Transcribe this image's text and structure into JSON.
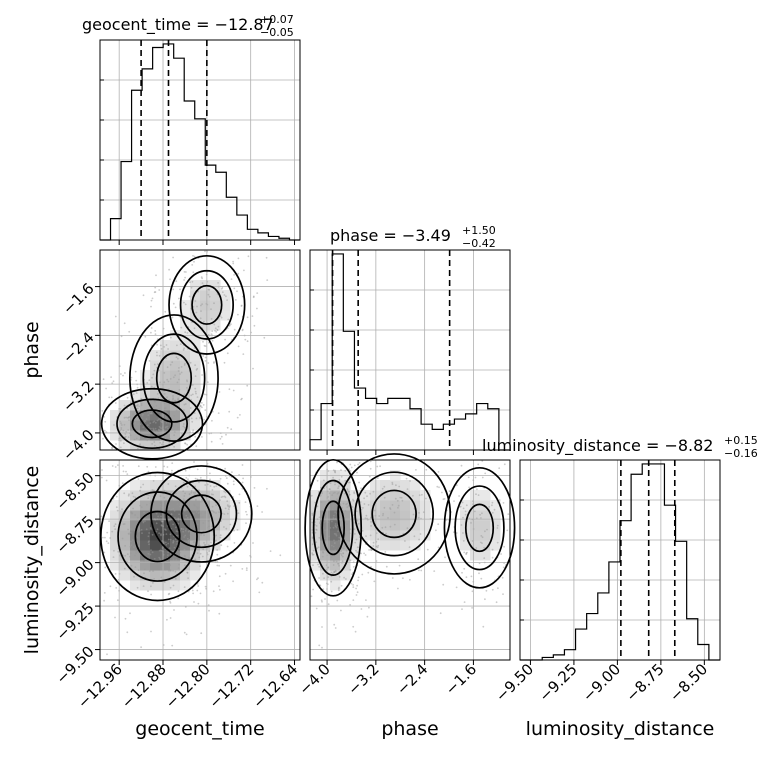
{
  "chart_data": {
    "type": "corner",
    "parameters": [
      "geocent_time",
      "phase",
      "luminosity_distance"
    ],
    "titles": [
      {
        "param": "geocent_time",
        "main": "geocent_time = −12.87",
        "plus": "+0.07",
        "minus": "−0.05"
      },
      {
        "param": "phase",
        "main": "phase = −3.49",
        "plus": "+1.50",
        "minus": "−0.42"
      },
      {
        "param": "luminosity_distance",
        "main": "luminosity_distance = −8.82",
        "plus": "+0.15",
        "minus": "−0.16"
      }
    ],
    "ranges": {
      "geocent_time": [
        -12.995,
        -12.63
      ],
      "phase": [
        -4.28,
        -1.0
      ],
      "luminosity_distance": [
        -9.56,
        -8.41
      ]
    },
    "quantiles": {
      "geocent_time": [
        -12.92,
        -12.87,
        -12.8
      ],
      "phase": [
        -3.91,
        -3.49,
        -1.99
      ],
      "luminosity_distance": [
        -8.98,
        -8.82,
        -8.67
      ]
    },
    "ticks": {
      "geocent_time": {
        "values": [
          -12.96,
          -12.88,
          -12.8,
          -12.72,
          -12.64
        ],
        "labels": [
          "−12.96",
          "−12.88",
          "−12.80",
          "−12.72",
          "−12.64"
        ]
      },
      "phase": {
        "values": [
          -4.0,
          -3.2,
          -2.4,
          -1.6
        ],
        "labels": [
          "−4.0",
          "−3.2",
          "−2.4",
          "−1.6"
        ]
      },
      "luminosity_distance": {
        "values": [
          -9.5,
          -9.25,
          -9.0,
          -8.75,
          -8.5
        ],
        "labels": [
          "−9.50",
          "−9.25",
          "−9.00",
          "−8.75",
          "−8.50"
        ]
      }
    },
    "histograms": {
      "geocent_time": [
        0.0,
        0.06,
        0.22,
        0.42,
        0.48,
        0.54,
        0.55,
        0.51,
        0.39,
        0.34,
        0.21,
        0.19,
        0.12,
        0.07,
        0.03,
        0.02,
        0.01,
        0.005,
        0.0
      ],
      "phase": [
        0.02,
        0.09,
        0.38,
        0.23,
        0.12,
        0.1,
        0.09,
        0.1,
        0.1,
        0.08,
        0.05,
        0.04,
        0.05,
        0.06,
        0.07,
        0.09,
        0.08,
        0.0
      ],
      "luminosity_distance": [
        0.0,
        0.0,
        0.005,
        0.01,
        0.02,
        0.06,
        0.09,
        0.13,
        0.19,
        0.27,
        0.36,
        0.38,
        0.38,
        0.3,
        0.23,
        0.08,
        0.03,
        0.0
      ]
    },
    "grid": true,
    "legend": "none"
  }
}
